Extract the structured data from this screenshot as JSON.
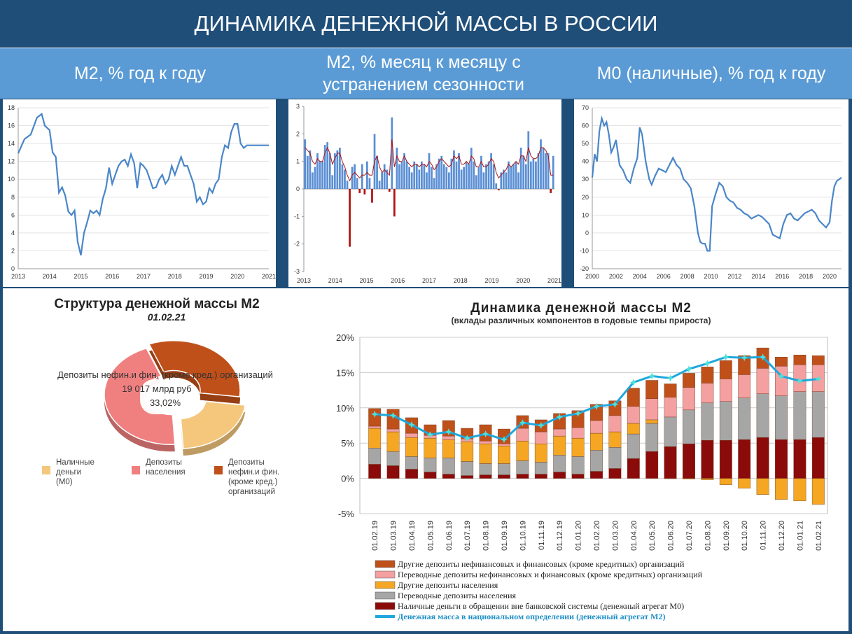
{
  "header": {
    "title": "ДИНАМИКА ДЕНЕЖНОЙ МАССЫ В РОССИИ"
  },
  "subtitles": {
    "m2_yoy": "М2, % год к году",
    "m2_mom_line1": "М2, % месяц к месяцу с",
    "m2_mom_line2": "устранением сезонности",
    "m0_yoy": "М0 (наличные), % год к году"
  },
  "chart_data": [
    {
      "id": "m2_yoy",
      "type": "line",
      "color": "#4a86c8",
      "ylim": [
        0,
        18
      ],
      "yticks": [
        0,
        2,
        4,
        6,
        8,
        10,
        12,
        14,
        16,
        18
      ],
      "xlim": [
        2013,
        2021
      ],
      "xticks": [
        "2013",
        "2014",
        "2015",
        "2016",
        "2017",
        "2018",
        "2019",
        "2020",
        "2021"
      ],
      "x": [
        2013.0,
        2013.2,
        2013.4,
        2013.6,
        2013.75,
        2013.85,
        2014.0,
        2014.1,
        2014.2,
        2014.3,
        2014.4,
        2014.5,
        2014.6,
        2014.7,
        2014.8,
        2014.9,
        2015.0,
        2015.1,
        2015.2,
        2015.3,
        2015.4,
        2015.5,
        2015.6,
        2015.7,
        2015.8,
        2015.9,
        2016.0,
        2016.1,
        2016.2,
        2016.3,
        2016.4,
        2016.5,
        2016.6,
        2016.7,
        2016.8,
        2016.9,
        2017.0,
        2017.1,
        2017.2,
        2017.3,
        2017.4,
        2017.5,
        2017.6,
        2017.7,
        2017.8,
        2017.9,
        2018.0,
        2018.1,
        2018.2,
        2018.3,
        2018.4,
        2018.5,
        2018.6,
        2018.7,
        2018.8,
        2018.9,
        2019.0,
        2019.1,
        2019.2,
        2019.3,
        2019.4,
        2019.5,
        2019.6,
        2019.7,
        2019.8,
        2019.9,
        2020.0,
        2020.1,
        2020.2,
        2020.3,
        2020.4,
        2020.5,
        2020.6,
        2020.7,
        2020.8,
        2020.9,
        2021.0
      ],
      "values": [
        12.9,
        14.5,
        15.0,
        16.9,
        17.3,
        16.0,
        15.5,
        13.0,
        12.5,
        8.5,
        9.1,
        8.2,
        6.4,
        6.0,
        6.5,
        3.0,
        1.5,
        4.0,
        5.2,
        6.5,
        6.2,
        6.5,
        6.0,
        7.8,
        9.0,
        11.3,
        9.5,
        10.5,
        11.5,
        12.0,
        12.2,
        11.5,
        12.8,
        11.8,
        9.0,
        11.8,
        11.5,
        11.0,
        10.0,
        9.0,
        9.1,
        10.0,
        10.5,
        9.5,
        10.0,
        11.5,
        10.5,
        11.5,
        12.5,
        11.5,
        11.5,
        10.5,
        9.5,
        7.5,
        8.0,
        7.2,
        7.5,
        9.0,
        8.5,
        9.5,
        10.0,
        12.5,
        13.8,
        13.5,
        15.3,
        16.2,
        16.2,
        14.0,
        13.5,
        13.8,
        13.8,
        13.8,
        13.8,
        13.8,
        13.8,
        13.8,
        13.8
      ]
    },
    {
      "id": "m2_mom",
      "type": "bar",
      "color_pos": "#5b8fd4",
      "color_neg": "#b01414",
      "line_color": "#b01414",
      "ylim": [
        -3,
        3
      ],
      "yticks": [
        -3,
        -2,
        -1,
        0,
        1,
        2,
        3
      ],
      "xlim": [
        2013,
        2021
      ],
      "xticks": [
        "2013",
        "2014",
        "2015",
        "2016",
        "2017",
        "2018",
        "2019",
        "2020",
        "2021"
      ],
      "values": [
        1.8,
        1.2,
        1.4,
        0.6,
        0.8,
        1.3,
        1.0,
        1.0,
        1.6,
        1.7,
        1.3,
        0.5,
        1.3,
        1.4,
        1.5,
        0.9,
        0.7,
        0.3,
        -2.1,
        0.8,
        0.9,
        0.4,
        -0.15,
        0.9,
        -0.2,
        1.0,
        0.4,
        -0.5,
        2.0,
        1.2,
        0.3,
        0.6,
        0.9,
        0.7,
        -0.1,
        2.6,
        -1.0,
        1.5,
        0.9,
        1.0,
        1.3,
        1.0,
        0.8,
        0.6,
        1.0,
        0.9,
        0.7,
        1.0,
        0.9,
        0.6,
        1.3,
        0.8,
        0.4,
        0.9,
        1.1,
        1.2,
        0.9,
        0.8,
        0.6,
        1.1,
        1.4,
        1.0,
        1.3,
        0.7,
        0.8,
        1.0,
        0.9,
        1.5,
        1.0,
        0.5,
        0.8,
        1.2,
        0.6,
        0.9,
        1.0,
        1.3,
        0.9,
        0.2,
        -0.05,
        0.6,
        0.7,
        0.6,
        1.0,
        0.8,
        0.9,
        1.0,
        0.6,
        1.5,
        1.2,
        0.9,
        2.1,
        1.0,
        1.1,
        1.0,
        1.3,
        1.8,
        1.5,
        1.3,
        1.3,
        -0.15,
        1.2
      ],
      "smooth": [
        1.5,
        1.4,
        1.3,
        1.0,
        0.9,
        1.1,
        1.0,
        1.0,
        1.3,
        1.5,
        1.3,
        0.9,
        1.1,
        1.3,
        1.3,
        1.0,
        0.8,
        0.5,
        0.3,
        0.5,
        0.6,
        0.5,
        0.4,
        0.5,
        0.5,
        0.6,
        0.5,
        0.5,
        1.0,
        1.2,
        0.8,
        0.6,
        0.7,
        0.6,
        0.5,
        1.8,
        0.8,
        1.2,
        1.0,
        1.0,
        1.2,
        1.0,
        0.9,
        0.8,
        0.9,
        0.9,
        0.8,
        0.9,
        0.9,
        0.8,
        1.0,
        0.9,
        0.7,
        0.8,
        1.0,
        1.1,
        1.0,
        0.9,
        0.8,
        0.9,
        1.2,
        1.1,
        1.2,
        0.9,
        0.9,
        1.0,
        0.9,
        1.2,
        1.1,
        0.8,
        0.8,
        1.0,
        0.8,
        0.8,
        0.9,
        1.1,
        1.0,
        0.6,
        0.4,
        0.5,
        0.6,
        0.7,
        0.9,
        0.8,
        0.9,
        1.0,
        0.9,
        1.2,
        1.2,
        1.0,
        1.5,
        1.2,
        1.1,
        1.1,
        1.2,
        1.5,
        1.5,
        1.4,
        1.2,
        0.5,
        0.5
      ]
    },
    {
      "id": "m0_yoy",
      "type": "line",
      "color": "#4a86c8",
      "ylim": [
        -20,
        70
      ],
      "yticks": [
        -20,
        -10,
        0,
        10,
        20,
        30,
        40,
        50,
        60,
        70
      ],
      "xlim": [
        2000,
        2021
      ],
      "xticks": [
        "2000",
        "2002",
        "2004",
        "2006",
        "2008",
        "2010",
        "2012",
        "2014",
        "2016",
        "2018",
        "2020"
      ],
      "x": [
        2000.0,
        2000.2,
        2000.4,
        2000.6,
        2000.8,
        2001.0,
        2001.2,
        2001.4,
        2001.6,
        2001.8,
        2002.0,
        2002.3,
        2002.6,
        2002.9,
        2003.2,
        2003.5,
        2003.8,
        2004.0,
        2004.2,
        2004.5,
        2004.8,
        2005.0,
        2005.3,
        2005.6,
        2005.9,
        2006.2,
        2006.5,
        2006.8,
        2007.1,
        2007.4,
        2007.7,
        2008.0,
        2008.3,
        2008.6,
        2008.9,
        2009.1,
        2009.3,
        2009.5,
        2009.7,
        2009.9,
        2010.1,
        2010.4,
        2010.7,
        2011.0,
        2011.3,
        2011.6,
        2011.9,
        2012.2,
        2012.5,
        2012.8,
        2013.1,
        2013.4,
        2013.7,
        2014.0,
        2014.3,
        2014.6,
        2014.9,
        2015.2,
        2015.5,
        2015.8,
        2016.1,
        2016.4,
        2016.7,
        2017.0,
        2017.3,
        2017.6,
        2017.9,
        2018.2,
        2018.5,
        2018.8,
        2019.1,
        2019.4,
        2019.7,
        2020.0,
        2020.2,
        2020.4,
        2020.6,
        2020.8,
        2021.0
      ],
      "values": [
        31,
        44,
        40,
        57,
        64,
        60,
        62,
        55,
        45,
        48,
        52,
        38,
        35,
        30,
        28,
        36,
        42,
        59,
        55,
        40,
        30,
        27,
        32,
        36,
        35,
        34,
        38,
        42,
        38,
        36,
        30,
        28,
        25,
        15,
        0,
        -5,
        -6,
        -6,
        -10,
        -10,
        15,
        22,
        28,
        26,
        20,
        18,
        17,
        14,
        13,
        11,
        10,
        8,
        9,
        10,
        9,
        7,
        5,
        -1,
        -2,
        -3,
        5,
        10,
        11,
        8,
        7,
        9,
        11,
        12,
        13,
        11,
        7,
        5,
        3,
        6,
        18,
        26,
        29,
        30,
        31
      ]
    },
    {
      "id": "m2_structure",
      "type": "pie",
      "title": "Структура денежной массы М2",
      "subtitle": "01.02.21",
      "callout_label": "Депозиты нефин.и фин. (кроме кред.) организаций",
      "callout_value": "19 017  млрд руб",
      "callout_pct": "33,02%",
      "slices": [
        {
          "label": "Наличные деньги (М0)",
          "value": 22.0,
          "color": "#f4c77d"
        },
        {
          "label": "Депозиты населения",
          "value": 44.98,
          "color": "#f08080"
        },
        {
          "label": "Депозиты нефин.и фин. (кроме кред.) организаций",
          "value": 33.02,
          "color": "#c0501a"
        }
      ]
    },
    {
      "id": "m2_dynamics",
      "type": "bar",
      "stacked": true,
      "title": "Динамика денежной массы М2",
      "subtitle": "(вклады различных компонентов в годовые темпы прироста)",
      "ylim": [
        -5,
        20
      ],
      "yticks": [
        "-5%",
        "0%",
        "5%",
        "10%",
        "15%",
        "20%"
      ],
      "categories": [
        "01.02.19",
        "01.03.19",
        "01.04.19",
        "01.05.19",
        "01.06.19",
        "01.07.19",
        "01.08.19",
        "01.09.19",
        "01.10.19",
        "01.11.19",
        "01.12.19",
        "01.01.20",
        "01.02.20",
        "01.03.20",
        "01.04.20",
        "01.05.20",
        "01.06.20",
        "01.07.20",
        "01.08.20",
        "01.09.20",
        "01.10.20",
        "01.11.20",
        "01.12.20",
        "01.01.21",
        "01.02.21"
      ],
      "series": [
        {
          "name": "Наличные деньги в обращении вне банковской системы (денежный агрегат М0)",
          "color": "#8b0a0a",
          "values": [
            2.0,
            1.8,
            1.3,
            0.9,
            0.6,
            0.4,
            0.5,
            0.5,
            0.6,
            0.6,
            0.9,
            0.6,
            1.0,
            1.4,
            2.8,
            3.8,
            4.5,
            4.9,
            5.4,
            5.4,
            5.5,
            5.8,
            5.5,
            5.5,
            5.8
          ]
        },
        {
          "name": "Переводные депозиты населения",
          "color": "#a6a6a6",
          "values": [
            2.3,
            2.0,
            1.8,
            2.0,
            2.3,
            2.0,
            1.6,
            1.6,
            1.9,
            1.7,
            2.4,
            2.5,
            3.0,
            3.0,
            3.5,
            4.0,
            4.2,
            4.8,
            5.3,
            5.5,
            5.9,
            6.2,
            6.2,
            6.8,
            6.5
          ]
        },
        {
          "name": "Другие депозиты населения",
          "color": "#f5a623",
          "values": [
            2.8,
            2.8,
            2.7,
            2.8,
            2.6,
            2.8,
            2.8,
            2.5,
            2.8,
            2.6,
            2.7,
            2.6,
            2.4,
            2.2,
            1.5,
            0.5,
            -0.05,
            -0.1,
            -0.2,
            -0.9,
            -1.4,
            -2.3,
            -3.0,
            -3.2,
            -3.7
          ]
        },
        {
          "name": "Переводные депозиты нефинансовых и финансовых (кроме кредитных)  организаций",
          "color": "#f4a0a0",
          "values": [
            0.3,
            0.4,
            0.6,
            0.4,
            0.5,
            0.4,
            0.4,
            0.3,
            1.8,
            1.7,
            1.0,
            1.5,
            1.8,
            2.3,
            2.4,
            3.0,
            2.8,
            3.2,
            2.8,
            3.2,
            3.3,
            3.6,
            4.2,
            3.8,
            3.8
          ]
        },
        {
          "name": "Другие депозиты нефинансовых и финансовых (кроме кредитных)  организаций",
          "color": "#c0501a",
          "values": [
            2.5,
            2.8,
            2.2,
            1.5,
            2.2,
            1.5,
            2.3,
            2.1,
            1.8,
            1.7,
            2.2,
            2.4,
            2.3,
            2.1,
            2.6,
            2.6,
            1.9,
            2.0,
            2.3,
            2.6,
            2.7,
            2.9,
            1.3,
            1.4,
            1.3
          ]
        }
      ],
      "line": {
        "name": "Денежная масса в национальном определении  (денежный агрегат  М2)",
        "color": "#1ea7dc",
        "marker_color": "#4de0d8",
        "values": [
          9.1,
          8.9,
          7.6,
          6.2,
          6.6,
          5.7,
          6.3,
          5.5,
          7.9,
          7.5,
          8.7,
          9.2,
          10.2,
          10.5,
          13.6,
          14.5,
          14.2,
          15.5,
          16.3,
          17.2,
          17.1,
          17.2,
          14.5,
          13.8,
          14.1
        ]
      }
    }
  ]
}
